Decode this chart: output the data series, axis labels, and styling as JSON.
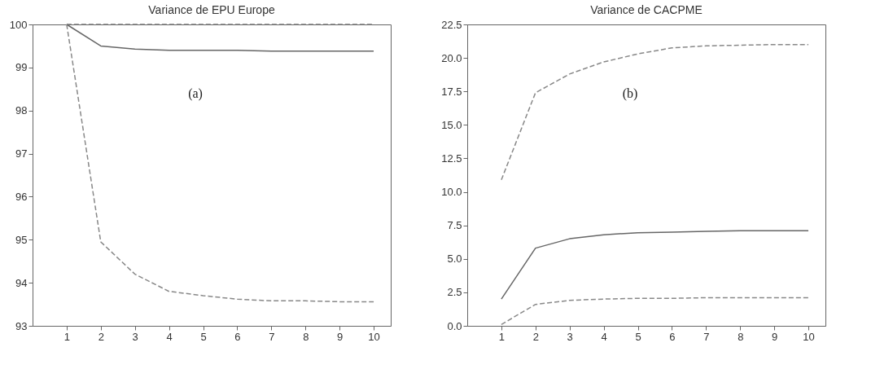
{
  "chart_data": [
    {
      "type": "line",
      "title": "Variance de EPU  Europe",
      "x": [
        1,
        2,
        3,
        4,
        5,
        6,
        7,
        8,
        9,
        10
      ],
      "xlim": [
        0,
        10.5
      ],
      "xticks": [
        1,
        2,
        3,
        4,
        5,
        6,
        7,
        8,
        9,
        10
      ],
      "ylim": [
        93,
        100
      ],
      "yticks": [
        93,
        94,
        95,
        96,
        97,
        98,
        99,
        100
      ],
      "grid": false,
      "annotations": [
        "(a)"
      ],
      "series": [
        {
          "color": "#777777",
          "line_style": "dashed",
          "values": [
            100,
            100,
            100,
            100,
            100,
            100,
            100,
            100,
            100,
            100
          ]
        },
        {
          "color": "#666666",
          "line_style": "solid",
          "values": [
            100,
            99.5,
            99.43,
            99.4,
            99.4,
            99.4,
            99.38,
            99.38,
            99.38,
            99.38
          ]
        },
        {
          "color": "#888888",
          "line_style": "dashed",
          "values": [
            100,
            94.95,
            94.2,
            93.8,
            93.7,
            93.62,
            93.58,
            93.58,
            93.56,
            93.56
          ]
        }
      ]
    },
    {
      "type": "line",
      "title": "Variance de CACPME",
      "x": [
        1,
        2,
        3,
        4,
        5,
        6,
        7,
        8,
        9,
        10
      ],
      "xlim": [
        0,
        10.5
      ],
      "xticks": [
        1,
        2,
        3,
        4,
        5,
        6,
        7,
        8,
        9,
        10
      ],
      "ylim": [
        0,
        22.5
      ],
      "yticks": [
        {
          "value": 0,
          "label": "0.0"
        },
        {
          "value": 2.5,
          "label": "2.5"
        },
        {
          "value": 5,
          "label": "5.0"
        },
        {
          "value": 7.5,
          "label": "7.5"
        },
        {
          "value": 10,
          "label": "10.0"
        },
        {
          "value": 12.5,
          "label": "12.5"
        },
        {
          "value": 15,
          "label": "15.0"
        },
        {
          "value": 17.5,
          "label": "17.5"
        },
        {
          "value": 20,
          "label": "20.0"
        },
        {
          "value": 22.5,
          "label": "22.5"
        }
      ],
      "grid": false,
      "annotations": [
        "(b)"
      ],
      "series": [
        {
          "color": "#888888",
          "line_style": "dashed",
          "values": [
            10.9,
            17.4,
            18.8,
            19.7,
            20.3,
            20.75,
            20.9,
            20.95,
            21.0,
            21.0
          ]
        },
        {
          "color": "#666666",
          "line_style": "solid",
          "values": [
            2.0,
            5.8,
            6.5,
            6.8,
            6.95,
            7.0,
            7.05,
            7.1,
            7.1,
            7.1
          ]
        },
        {
          "color": "#888888",
          "line_style": "dashed",
          "values": [
            0.1,
            1.6,
            1.9,
            2.0,
            2.05,
            2.05,
            2.1,
            2.1,
            2.1,
            2.1
          ]
        }
      ]
    }
  ]
}
